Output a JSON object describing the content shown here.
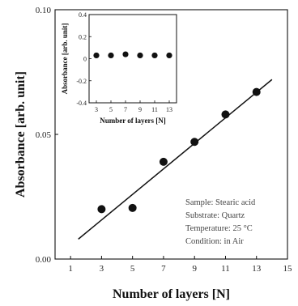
{
  "chart_data": {
    "type": "scatter",
    "title": "",
    "xlabel": "Number of layers [N]",
    "ylabel": "Absorbance [arb. unit]",
    "xlim": [
      0,
      15
    ],
    "ylim": [
      0.0,
      0.1
    ],
    "xticks": [
      1,
      3,
      5,
      7,
      9,
      11,
      13,
      15
    ],
    "xtick_labels": [
      "1",
      "3",
      "5",
      "7",
      "9",
      "11",
      "13",
      "15"
    ],
    "yticks": [
      0.0,
      0.05,
      0.1
    ],
    "ytick_labels": [
      "0.00",
      "0.05",
      "0.10"
    ],
    "series": [
      {
        "x": [
          3,
          5,
          7,
          9,
          11,
          13
        ],
        "y": [
          0.02,
          0.0205,
          0.039,
          0.047,
          0.058,
          0.067
        ]
      }
    ],
    "fit_line": {
      "x": [
        1.5,
        14
      ],
      "y": [
        0.008,
        0.072
      ]
    },
    "annotation_lines": [
      "Sample: Stearic acid",
      "Substrate: Quartz",
      "Temperature: 25 °C",
      "Condition: in Air"
    ],
    "inset": {
      "type": "scatter",
      "xlabel": "Number of layers [N]",
      "ylabel": "Absorbance [arb. unit]",
      "xlim": [
        2,
        14
      ],
      "ylim": [
        -0.4,
        0.4
      ],
      "xticks": [
        3,
        5,
        7,
        9,
        11,
        13
      ],
      "xtick_labels": [
        "3",
        "5",
        "7",
        "9",
        "11",
        "13"
      ],
      "yticks": [
        -0.4,
        -0.2,
        0.0,
        0.2,
        0.4
      ],
      "ytick_labels": [
        "-0.4",
        "-0.2",
        "0",
        "0.2",
        "0.4"
      ],
      "series": [
        {
          "x": [
            3,
            5,
            7,
            9,
            11,
            13
          ],
          "y": [
            0.03,
            0.03,
            0.04,
            0.03,
            0.03,
            0.03
          ]
        }
      ]
    }
  }
}
